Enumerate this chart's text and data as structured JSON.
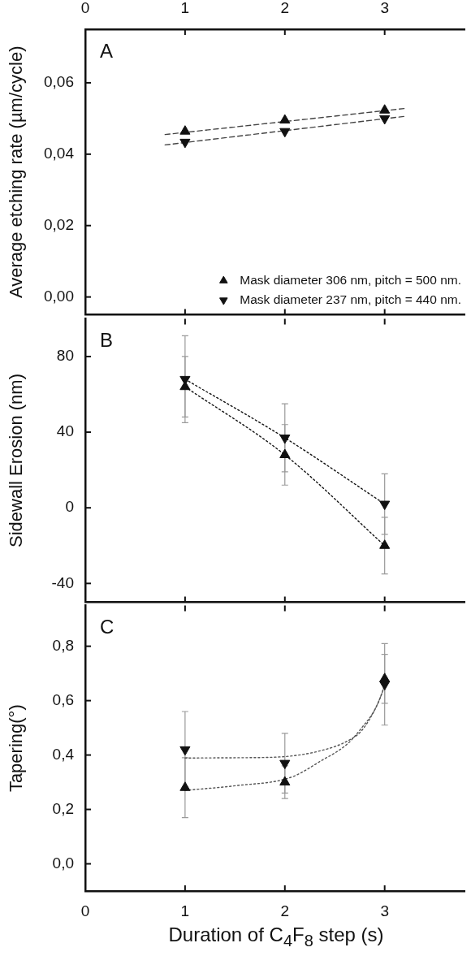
{
  "chart_data": [
    {
      "type": "scatter",
      "ylabel": "Average etching rate (µm/cycle)",
      "annotations": [
        "A"
      ],
      "legend": "bottom right",
      "tick_labels": "y",
      "xlim": [
        0,
        3.8
      ],
      "xticks": [
        0,
        1,
        2,
        3
      ],
      "x2lim": [
        0,
        3.8
      ],
      "x2ticks": [
        0,
        1,
        2,
        3
      ],
      "ylim": [
        -0.005,
        0.075
      ],
      "yticks": [
        {
          "value": 0,
          "label": "0,00"
        },
        {
          "value": 0.02,
          "label": "0,02"
        },
        {
          "value": 0.04,
          "label": "0,04"
        },
        {
          "value": 0.06,
          "label": "0,06"
        }
      ],
      "series": [
        {
          "name": "Mask diameter 306 nm, pitch = 500 nm.",
          "color": "#111111",
          "marker": "triangle",
          "x": [
            1,
            2,
            3
          ],
          "values": [
            0.0464,
            0.0495,
            0.0523
          ]
        },
        {
          "name": "Mask diameter 237 nm, pitch = 440 nm.",
          "color": "#111111",
          "marker": "triangle-down",
          "x": [
            1,
            2,
            3
          ],
          "values": [
            0.0434,
            0.0464,
            0.05
          ]
        },
        {
          "type": "line",
          "color": "#444444",
          "line_style": "dashed",
          "marker": "none",
          "x": [
            0.8,
            3.2
          ],
          "values": [
            0.0455,
            0.0528
          ]
        },
        {
          "type": "line",
          "color": "#444444",
          "line_style": "dashed",
          "marker": "none",
          "x": [
            0.8,
            3.2
          ],
          "values": [
            0.0426,
            0.0506
          ]
        }
      ]
    },
    {
      "type": "line",
      "ylabel": "Sidewall Erosion (nm)",
      "annotations": [
        "B"
      ],
      "tick_labels": "y",
      "line_style": "dotted",
      "xlim": [
        0,
        3.8
      ],
      "xticks": [
        0,
        1,
        2,
        3
      ],
      "ylim": [
        -50,
        100
      ],
      "yticks": [
        -40,
        0,
        40,
        80
      ],
      "series": [
        {
          "color": "#111111",
          "marker": "triangle",
          "x": [
            1,
            2,
            3
          ],
          "values": [
            64,
            28,
            -20
          ],
          "errors": [
            16,
            16,
            15
          ]
        },
        {
          "color": "#111111",
          "marker": "triangle-down",
          "x": [
            1,
            2,
            3
          ],
          "values": [
            68,
            37,
            2
          ],
          "errors": [
            23,
            18,
            16
          ]
        }
      ]
    },
    {
      "type": "scatter",
      "ylabel": "Tapering(°)",
      "xlabel": "Duration of C$_{4}$F$_{8}$ step (s)",
      "annotations": [
        "C"
      ],
      "xlim": [
        0,
        3.8
      ],
      "xticks": [
        0,
        1,
        2,
        3
      ],
      "ylim": [
        -0.1,
        0.95
      ],
      "yticks": [
        {
          "value": 0,
          "label": "0,0"
        },
        {
          "value": 0.2,
          "label": "0,2"
        },
        {
          "value": 0.4,
          "label": "0,4"
        },
        {
          "value": 0.6,
          "label": "0,6"
        },
        {
          "value": 0.8,
          "label": "0,8"
        }
      ],
      "series": [
        {
          "color": "#111111",
          "marker": "triangle",
          "x": [
            1,
            2,
            3
          ],
          "values": [
            0.28,
            0.3,
            0.68
          ],
          "errors": [
            0.11,
            0.06,
            0.09
          ]
        },
        {
          "color": "#111111",
          "marker": "triangle-down",
          "x": [
            1,
            2,
            3
          ],
          "values": [
            0.42,
            0.37,
            0.66
          ],
          "errors": [
            0.14,
            0.11,
            0.15
          ]
        },
        {
          "type": "line",
          "color": "#555555",
          "line_style": "dotted",
          "marker": "none",
          "x": [
            1,
            1.5,
            1.95,
            2.36,
            2.63,
            2.77,
            2.9,
            2.98,
            3.0
          ],
          "values": [
            0.389,
            0.39,
            0.393,
            0.416,
            0.452,
            0.49,
            0.566,
            0.635,
            0.66
          ]
        },
        {
          "type": "line",
          "color": "#555555",
          "line_style": "dotted",
          "marker": "none",
          "x": [
            1,
            1.5,
            2.06,
            2.36,
            2.63,
            2.77,
            2.9,
            2.98,
            3.0
          ],
          "values": [
            0.27,
            0.287,
            0.318,
            0.378,
            0.442,
            0.5,
            0.566,
            0.635,
            0.66
          ]
        }
      ]
    }
  ]
}
